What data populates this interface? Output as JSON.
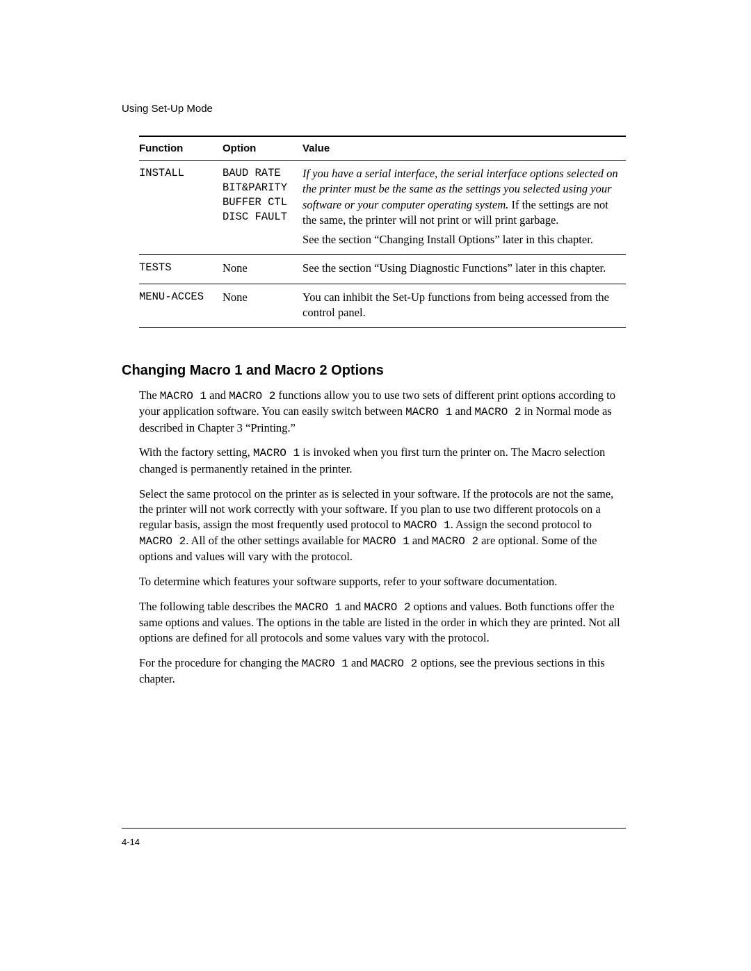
{
  "running_head": "Using Set-Up Mode",
  "table": {
    "headers": {
      "func": "Function",
      "opt": "Option",
      "val": "Value"
    },
    "rows": {
      "install": {
        "func": "INSTALL",
        "opts": [
          "BAUD RATE",
          "BIT&PARITY",
          "BUFFER CTL",
          "DISC FAULT"
        ],
        "val1_italic": "If you have a serial interface, the serial interface options selected on the printer must be the same as the settings you selected using your software or your computer operating system.",
        "val1_tail": "  If the settings are not the same, the printer will not print or will print garbage.",
        "val2": "See the section “Changing Install Options” later in this chapter."
      },
      "tests": {
        "func": "TESTS",
        "opt": "None",
        "val": "See the section “Using Diagnostic Functions” later in this chapter."
      },
      "menu": {
        "func": "MENU-ACCES",
        "opt": "None",
        "val": "You can inhibit the Set-Up functions from being accessed from the control panel."
      }
    }
  },
  "heading": "Changing Macro 1 and Macro 2 Options",
  "body": {
    "p1a": "The ",
    "p1m1": "MACRO 1",
    "p1b": " and ",
    "p1m2": "MACRO 2",
    "p1c": " functions allow you to use two sets of different print options according to your application software.  You can easily switch between ",
    "p1m3": "MACRO 1",
    "p1d": " and ",
    "p1m4": "MACRO 2",
    "p1e": " in Normal mode as described in Chapter 3 “Printing.”",
    "p2a": "With the factory setting, ",
    "p2m1": "MACRO 1",
    "p2b": " is invoked when you first turn the printer on.  The Macro selection changed is permanently retained in the printer.",
    "p3a": "Select the same protocol on the printer as is selected in your software.  If the protocols are not the same, the printer will not work correctly with your software.  If you plan to use two different protocols on a regular basis, assign the most frequently used protocol to ",
    "p3m1": "MACRO 1",
    "p3b": ".  Assign the second protocol to ",
    "p3m2": "MACRO 2",
    "p3c": ".  All of the other settings available for ",
    "p3m3": "MACRO 1",
    "p3d": " and ",
    "p3m4": "MACRO 2",
    "p3e": " are optional.  Some of the options and values will vary with the protocol.",
    "p4": "To determine which features your software supports, refer to your software documentation.",
    "p5a": "The following table describes the ",
    "p5m1": "MACRO 1",
    "p5b": " and ",
    "p5m2": "MACRO 2",
    "p5c": " options and values.  Both functions offer the same options and values.  The options in the table are listed in the order in which they are printed.  Not all options are defined for all protocols and some values vary with the protocol.",
    "p6a": "For the procedure for changing the ",
    "p6m1": "MACRO 1",
    "p6b": " and ",
    "p6m2": "MACRO 2",
    "p6c": " options, see the previous sections in this chapter."
  },
  "page_no": "4-14"
}
